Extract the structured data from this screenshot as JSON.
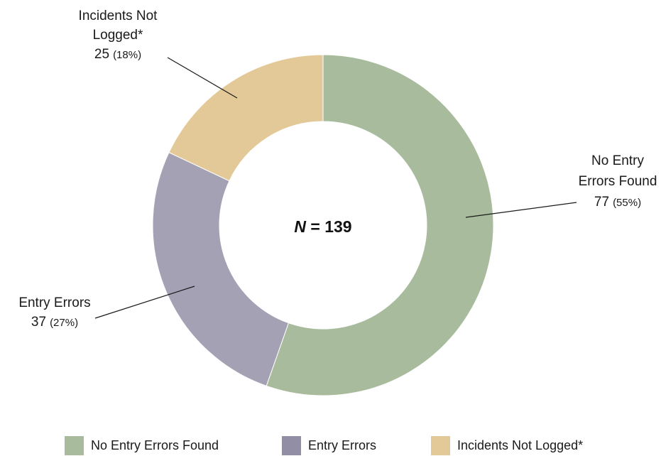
{
  "chart_data": {
    "type": "pie",
    "donut": true,
    "center_label": {
      "italic": "N",
      "rest": " = 139"
    },
    "total": 139,
    "slices": [
      {
        "name": "No Entry Errors Found",
        "label_lines": [
          "No Entry",
          "Errors Found"
        ],
        "value": 77,
        "percent_label": "(55%)",
        "color": "#a8bc9d"
      },
      {
        "name": "Entry Errors",
        "label_lines": [
          "Entry Errors"
        ],
        "value": 37,
        "percent_label": "(27%)",
        "color": "#a4a1b4"
      },
      {
        "name": "Incidents Not Logged*",
        "label_lines": [
          "Incidents Not",
          "Logged*"
        ],
        "value": 25,
        "percent_label": "(18%)",
        "color": "#e3c998"
      }
    ],
    "legend": {
      "placement": "bottom",
      "entries": [
        {
          "label": "No Entry Errors Found",
          "color": "#a8bc9d"
        },
        {
          "label": "Entry Errors",
          "color": "#928ea6"
        },
        {
          "label": "Incidents Not Logged*",
          "color": "#e3c998"
        }
      ]
    }
  }
}
